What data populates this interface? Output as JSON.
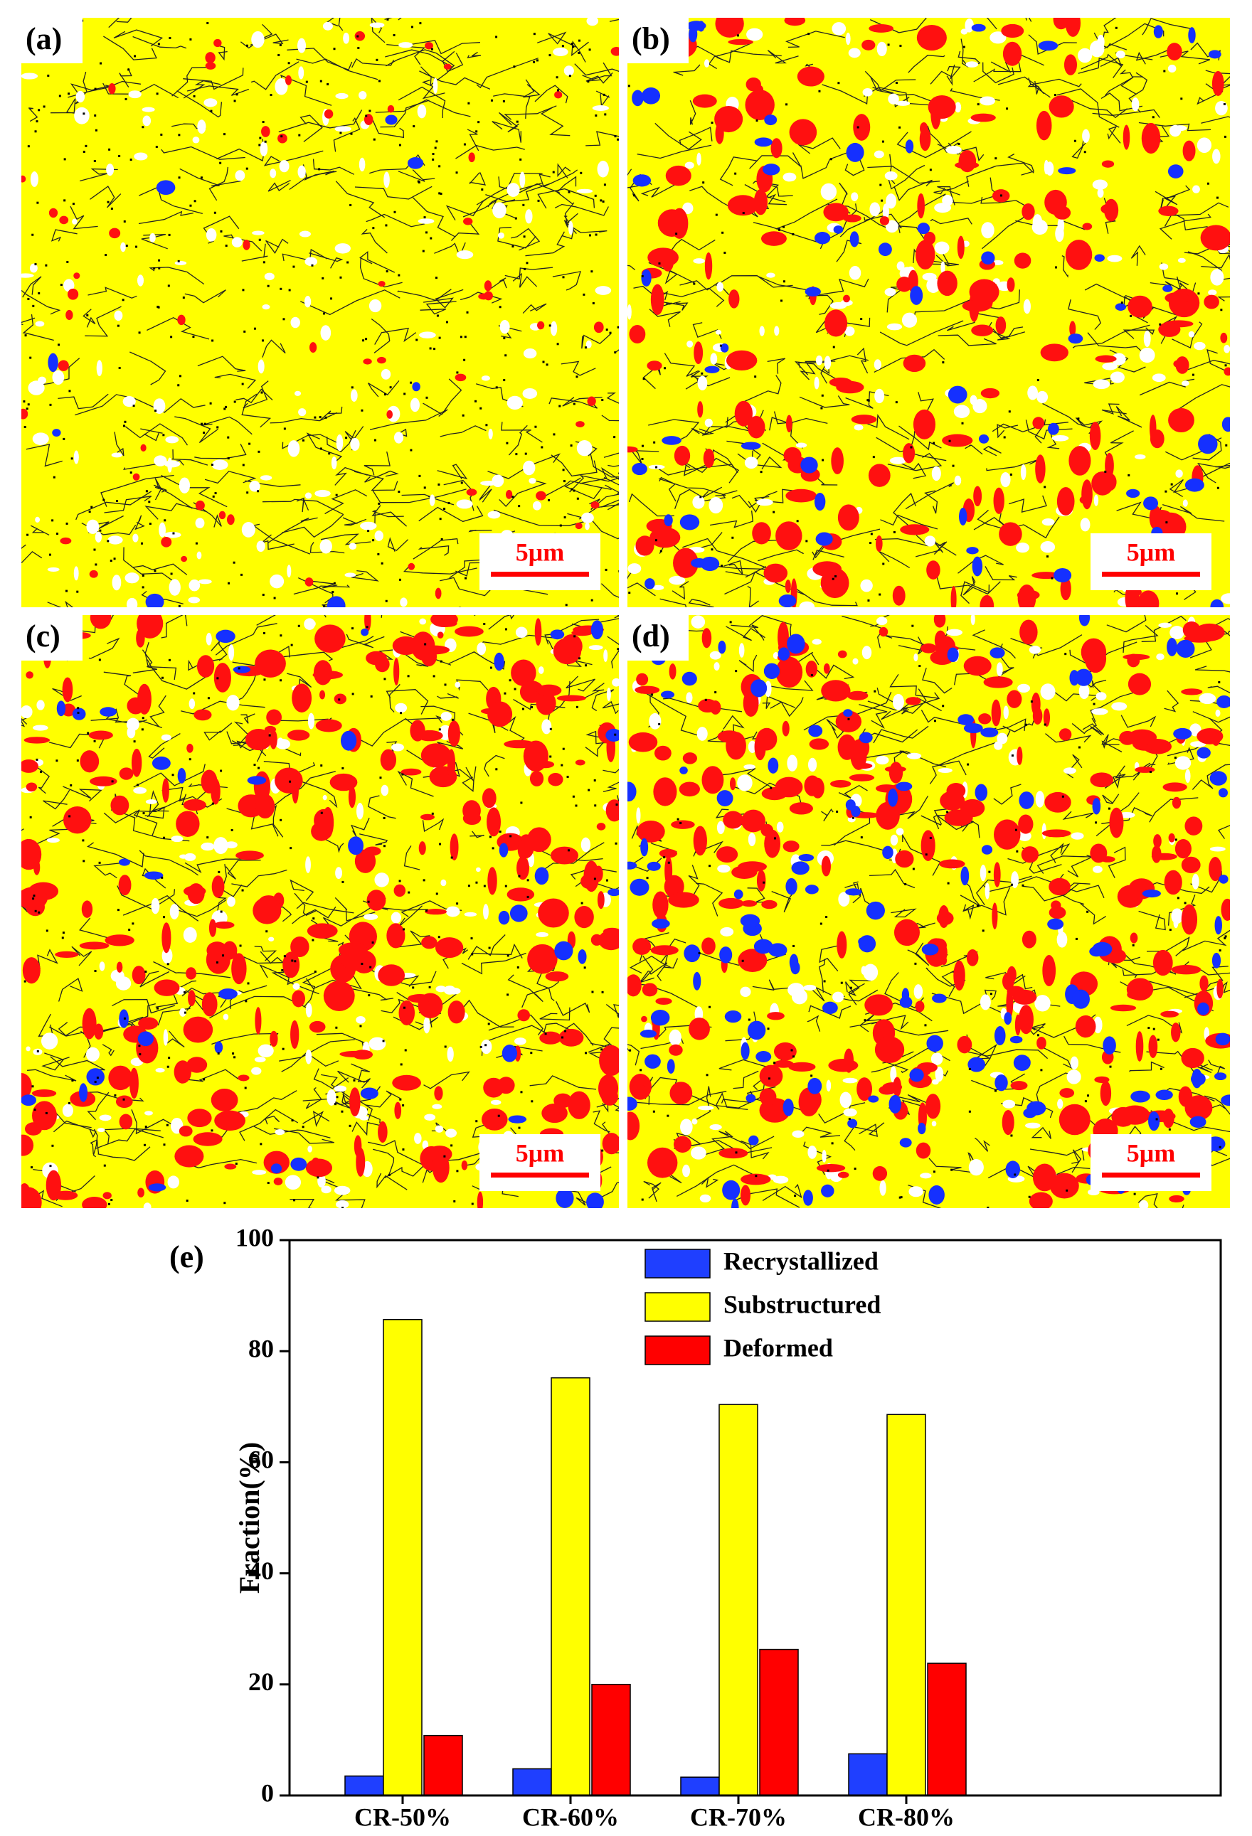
{
  "panels": [
    {
      "label": "(a)",
      "scale_bar": "5μm"
    },
    {
      "label": "(b)",
      "scale_bar": "5μm"
    },
    {
      "label": "(c)",
      "scale_bar": "5μm"
    },
    {
      "label": "(d)",
      "scale_bar": "5μm"
    }
  ],
  "chart_data": {
    "type": "bar",
    "label": "(e)",
    "y_label": "Fraction(%)",
    "categories": [
      "CR-50%",
      "CR-60%",
      "CR-70%",
      "CR-80%"
    ],
    "series": [
      {
        "name": "Recrystallized",
        "color": "#1f3fff",
        "values": [
          3.5,
          4.8,
          3.3,
          7.5
        ]
      },
      {
        "name": "Substructured",
        "color": "#ffff00",
        "values": [
          85.7,
          75.2,
          70.4,
          68.6
        ]
      },
      {
        "name": "Deformed",
        "color": "#ff0000",
        "values": [
          10.8,
          20.0,
          26.3,
          23.8
        ]
      }
    ],
    "ylim": [
      0,
      100
    ],
    "yticks": [
      0,
      20,
      40,
      60,
      80,
      100
    ]
  }
}
